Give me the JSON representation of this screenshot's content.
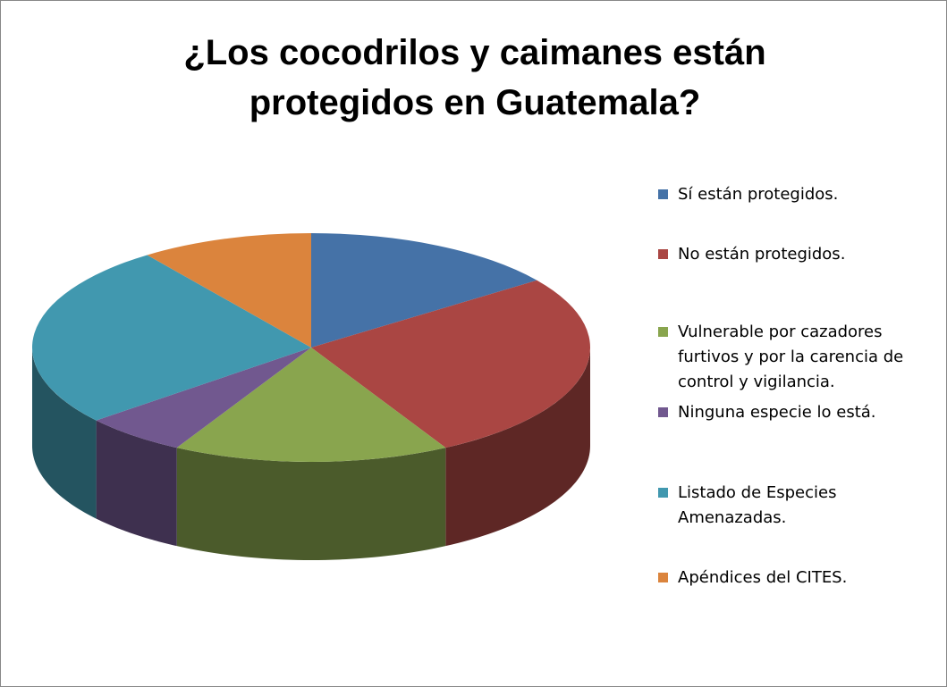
{
  "chart_data": {
    "type": "pie3d",
    "title": "¿Los cocodrilos y caimanes están protegidos en Guatemala?",
    "categories": [
      "Sí están protegidos.",
      "No están protegidos.",
      "Vulnerable por cazadores furtivos y por la carencia de control y vigilancia.",
      "Ninguna especie lo está.",
      "Listado de Especies Amenazadas.",
      "Apéndices del CITES."
    ],
    "values": [
      15,
      27,
      16,
      6,
      26,
      10
    ],
    "colors": [
      "#4572a7",
      "#aa4643",
      "#89a54e",
      "#71588f",
      "#4198af",
      "#db843d"
    ],
    "legend": "right"
  }
}
